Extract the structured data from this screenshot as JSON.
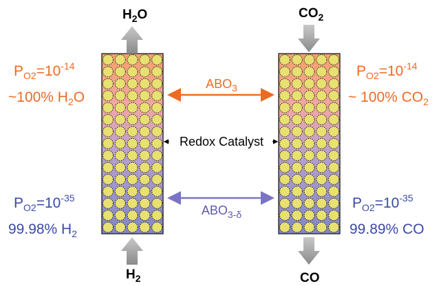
{
  "left_column": {
    "top_output": [
      "H",
      "2",
      "O"
    ],
    "bottom_input": [
      "H",
      "2"
    ],
    "top_pressure": [
      "P",
      "O2",
      "=10",
      "-14"
    ],
    "top_composition": [
      "~100% H",
      "2",
      "O"
    ],
    "bottom_pressure": [
      "P",
      "O2",
      "=10",
      "-35"
    ],
    "bottom_composition": [
      "99.98% H",
      "2"
    ]
  },
  "right_column": {
    "top_input": [
      "CO",
      "2"
    ],
    "bottom_output": [
      "CO"
    ],
    "top_pressure": [
      "P",
      "O2",
      "=10",
      "-14"
    ],
    "top_composition": [
      "~ 100% CO",
      "2"
    ],
    "bottom_pressure": [
      "P",
      "O2",
      "=10",
      "-35"
    ],
    "bottom_composition": [
      "99.89% CO"
    ]
  },
  "center": {
    "oxidized": [
      "ABO",
      "3"
    ],
    "catalyst": "Redox Catalyst",
    "reduced": [
      "ABO",
      "3-δ"
    ]
  }
}
